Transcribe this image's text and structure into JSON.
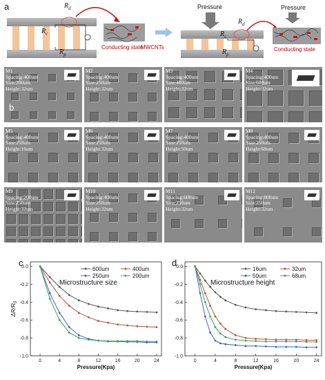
{
  "panels": {
    "a": "a",
    "b": "b",
    "c": "c",
    "d": "d"
  },
  "schematic": {
    "rd": "R",
    "rd_sub": "d",
    "rc": "R",
    "rc_sub": "c",
    "rp": "R",
    "rp_sub": "p",
    "conducting_left": "Conducting state",
    "mwcnts": "MWCNTs",
    "pressure_1": "Pressure",
    "pressure_2": "Pressure",
    "conducting_right": "Conducting state"
  },
  "tiles": [
    {
      "id": "M1",
      "lines": [
        "M1",
        "Spacing:400um",
        "Size:200um",
        "Height:32um"
      ]
    },
    {
      "id": "M2",
      "lines": [
        "M2",
        "Spacing:400um",
        "Size:250um",
        "Height:32um"
      ]
    },
    {
      "id": "M3",
      "lines": [
        "M3",
        "Spacing:400um",
        "Size:400um",
        "Height:32um"
      ]
    },
    {
      "id": "M4",
      "lines": [
        "M4",
        "Spacing:400um",
        "Size:600um",
        "Height:32um"
      ]
    },
    {
      "id": "M5",
      "lines": [
        "M5",
        "Spacing:400um",
        "Size:250um",
        "Height:16um"
      ]
    },
    {
      "id": "M6",
      "lines": [
        "M6",
        "Spacing:400um",
        "Size:250um",
        "Height:32um"
      ]
    },
    {
      "id": "M7",
      "lines": [
        "M7",
        "Spacing:400um",
        "Size:250um",
        "Height:50um"
      ]
    },
    {
      "id": "M8",
      "lines": [
        "M8",
        "Spacing:400um",
        "Size:250um",
        "Height:68um"
      ]
    },
    {
      "id": "M9",
      "lines": [
        "M9",
        "Spacing:200um",
        "Size:250um",
        "Height:32um"
      ]
    },
    {
      "id": "M10",
      "lines": [
        "M10",
        "Spacing:400um",
        "Size:250um",
        "Height:32um"
      ]
    },
    {
      "id": "M11",
      "lines": [
        "M11",
        "Spacing:600um",
        "Size:250um",
        "Height:32um"
      ]
    },
    {
      "id": "M12",
      "lines": [
        "M12",
        "Spacing:800um",
        "Size:250um",
        "Height:32um"
      ]
    }
  ],
  "chart_data": [
    {
      "type": "line",
      "title": "Microstructure size",
      "xlabel": "Pressure(Kpa)",
      "ylabel": "ΔR/R",
      "ylabel_sub": "0",
      "xlim": [
        -2,
        25
      ],
      "ylim": [
        -1.0,
        0.05
      ],
      "xticks": [
        0,
        4,
        8,
        12,
        16,
        20,
        24
      ],
      "yticks": [
        0.0,
        -0.2,
        -0.4,
        -0.6,
        -0.8,
        -1.0
      ],
      "ytick_labels": [
        "0.0",
        "-0.2",
        "-0.4",
        "-0.6",
        "-0.8",
        "-1.0"
      ],
      "x": [
        0,
        2,
        4,
        6,
        8,
        10,
        12,
        14,
        16,
        18,
        20,
        22,
        24
      ],
      "series": [
        {
          "name": "600um",
          "color": "#555555",
          "values": [
            0.0,
            -0.12,
            -0.23,
            -0.32,
            -0.38,
            -0.42,
            -0.45,
            -0.47,
            -0.49,
            -0.5,
            -0.505,
            -0.51,
            -0.515
          ]
        },
        {
          "name": "400um",
          "color": "#b0553c",
          "values": [
            0.0,
            -0.18,
            -0.33,
            -0.44,
            -0.52,
            -0.57,
            -0.61,
            -0.63,
            -0.65,
            -0.66,
            -0.67,
            -0.675,
            -0.68
          ]
        },
        {
          "name": "250um",
          "color": "#3c5fd0",
          "values": [
            0.0,
            -0.3,
            -0.52,
            -0.68,
            -0.77,
            -0.81,
            -0.83,
            -0.84,
            -0.84,
            -0.845,
            -0.845,
            -0.85,
            -0.85
          ]
        },
        {
          "name": "200um",
          "color": "#3c9e5a",
          "values": [
            0.0,
            -0.36,
            -0.6,
            -0.74,
            -0.8,
            -0.82,
            -0.83,
            -0.835,
            -0.835,
            -0.835,
            -0.835,
            -0.84,
            -0.84
          ]
        }
      ]
    },
    {
      "type": "line",
      "title": "Microstructure height",
      "xlabel": "Pressure(Kpa)",
      "ylabel": "",
      "xlim": [
        -2,
        25
      ],
      "ylim": [
        -1.0,
        0.05
      ],
      "xticks": [
        0,
        4,
        8,
        12,
        16,
        20,
        24
      ],
      "yticks": [
        0.0,
        -0.2,
        -0.4,
        -0.6,
        -0.8,
        -1.0
      ],
      "ytick_labels": [
        "0.0",
        "-0.2",
        "-0.4",
        "-0.6",
        "-0.8",
        "-1.0"
      ],
      "x": [
        0,
        1,
        2,
        3,
        4,
        5,
        6,
        8,
        10,
        12,
        14,
        16,
        18,
        20,
        22,
        24
      ],
      "series": [
        {
          "name": "16um",
          "color": "#555555",
          "values": [
            0.0,
            -0.08,
            -0.16,
            -0.23,
            -0.29,
            -0.34,
            -0.38,
            -0.43,
            -0.46,
            -0.48,
            -0.49,
            -0.5,
            -0.505,
            -0.51,
            -0.515,
            -0.52
          ]
        },
        {
          "name": "32um",
          "color": "#b0553c",
          "values": [
            0.0,
            -0.15,
            -0.3,
            -0.44,
            -0.56,
            -0.64,
            -0.7,
            -0.77,
            -0.8,
            -0.81,
            -0.815,
            -0.82,
            -0.82,
            -0.82,
            -0.825,
            -0.825
          ]
        },
        {
          "name": "50um",
          "color": "#3c5fd0",
          "values": [
            0.0,
            -0.3,
            -0.56,
            -0.74,
            -0.83,
            -0.86,
            -0.87,
            -0.88,
            -0.89,
            -0.89,
            -0.895,
            -0.9,
            -0.9,
            -0.9,
            -0.905,
            -0.905
          ]
        },
        {
          "name": "68um",
          "color": "#3c9e5a",
          "values": [
            0.0,
            -0.2,
            -0.4,
            -0.56,
            -0.68,
            -0.75,
            -0.79,
            -0.82,
            -0.83,
            -0.835,
            -0.84,
            -0.84,
            -0.84,
            -0.84,
            -0.845,
            -0.845
          ]
        }
      ]
    }
  ]
}
